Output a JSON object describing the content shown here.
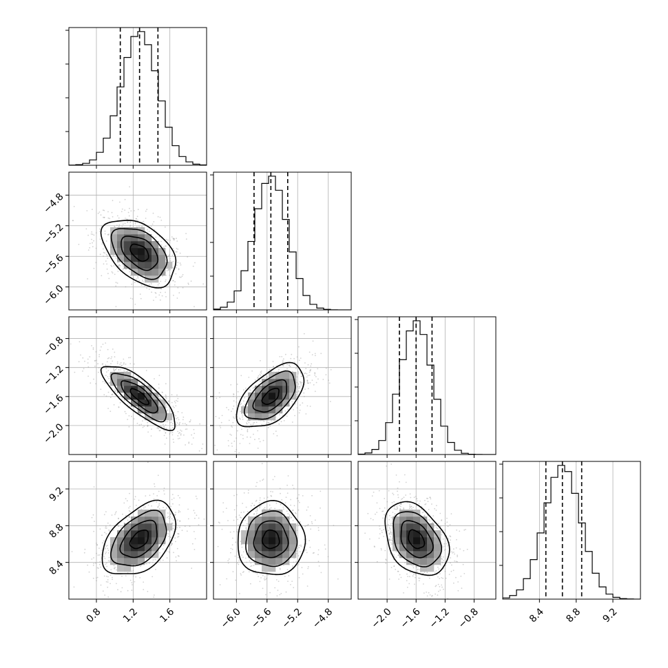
{
  "chart_data": {
    "type": "corner",
    "params": [
      {
        "mean": 1.27,
        "std": 0.2,
        "range": [
          0.5,
          2.0
        ],
        "ticks": [
          "0.8",
          "1.2",
          "1.6"
        ],
        "tick_values": [
          0.8,
          1.2,
          1.6
        ],
        "quantiles": [
          1.06,
          1.27,
          1.47
        ]
      },
      {
        "mean": -5.55,
        "std": 0.22,
        "range": [
          -6.3,
          -4.5
        ],
        "ticks": [
          "−6.0",
          "−5.6",
          "−5.2",
          "−4.8"
        ],
        "tick_values": [
          -6.0,
          -5.6,
          -5.2,
          -4.8
        ],
        "quantiles": [
          -5.77,
          -5.55,
          -5.33
        ]
      },
      {
        "mean": -1.6,
        "std": 0.22,
        "range": [
          -2.4,
          -0.5
        ],
        "ticks": [
          "−2.0",
          "−1.6",
          "−1.2",
          "−0.8"
        ],
        "tick_values": [
          -2.0,
          -1.6,
          -1.2,
          -0.8
        ],
        "quantiles": [
          -1.83,
          -1.6,
          -1.38
        ]
      },
      {
        "mean": 8.65,
        "std": 0.2,
        "range": [
          8.0,
          9.5
        ],
        "ticks": [
          "8.4",
          "8.8",
          "9.2"
        ],
        "tick_values": [
          8.4,
          8.8,
          9.2
        ],
        "quantiles": [
          8.47,
          8.65,
          8.86
        ]
      }
    ],
    "correlations": [
      [
        1.0,
        -0.45,
        -0.8,
        0.45
      ],
      [
        -0.45,
        1.0,
        0.55,
        0.0
      ],
      [
        -0.8,
        0.55,
        1.0,
        -0.35
      ],
      [
        0.45,
        0.0,
        -0.35,
        1.0
      ]
    ],
    "histogram_bins": 20,
    "contour_levels_sigma": [
      0.5,
      1.0,
      1.5,
      2.0
    ],
    "grid": true
  }
}
